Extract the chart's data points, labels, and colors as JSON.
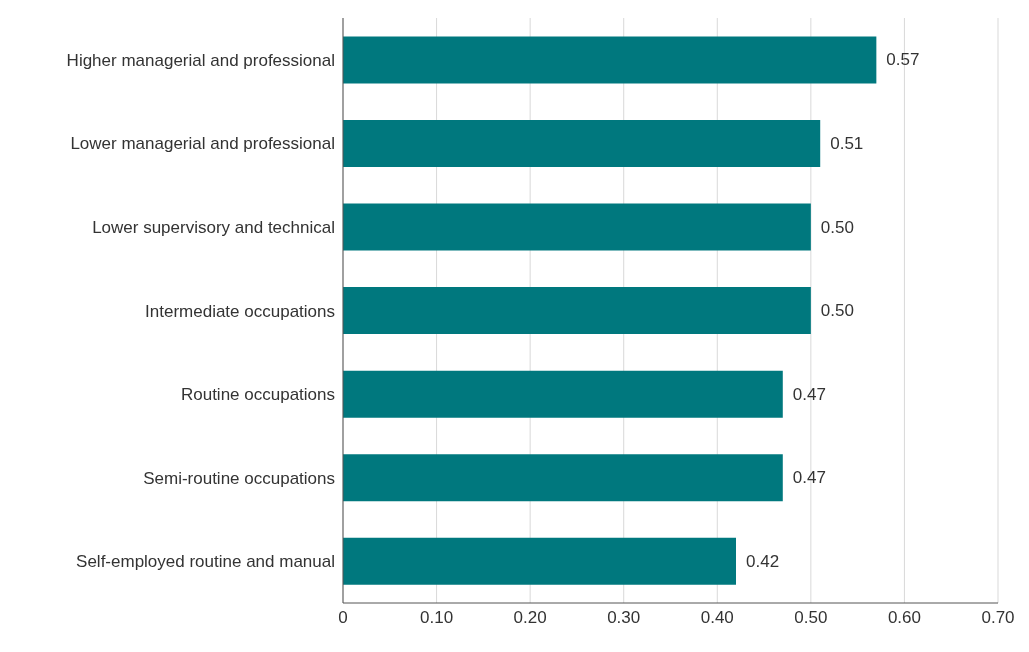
{
  "chart_data": {
    "type": "bar",
    "orientation": "horizontal",
    "categories": [
      "Higher managerial and professional",
      "Lower managerial and professional",
      "Lower supervisory and technical",
      "Intermediate occupations",
      "Routine occupations",
      "Semi-routine occupations",
      "Self-employed routine and manual"
    ],
    "values": [
      0.57,
      0.51,
      0.5,
      0.5,
      0.47,
      0.47,
      0.42
    ],
    "value_labels": [
      "0.57",
      "0.51",
      "0.50",
      "0.50",
      "0.47",
      "0.47",
      "0.42"
    ],
    "color": "#00787e",
    "xlim": [
      0,
      0.7
    ],
    "xticks": [
      0,
      {
        "value": 0.1,
        "label": "0.10"
      },
      {
        "value": 0.2,
        "label": "0.20"
      },
      {
        "value": 0.3,
        "label": "0.30"
      },
      {
        "value": 0.4,
        "label": "0.40"
      },
      {
        "value": 0.5,
        "label": "0.50"
      },
      {
        "value": 0.6,
        "label": "0.60"
      },
      {
        "value": 0.7,
        "label": "0.70"
      }
    ],
    "grid": "x"
  }
}
